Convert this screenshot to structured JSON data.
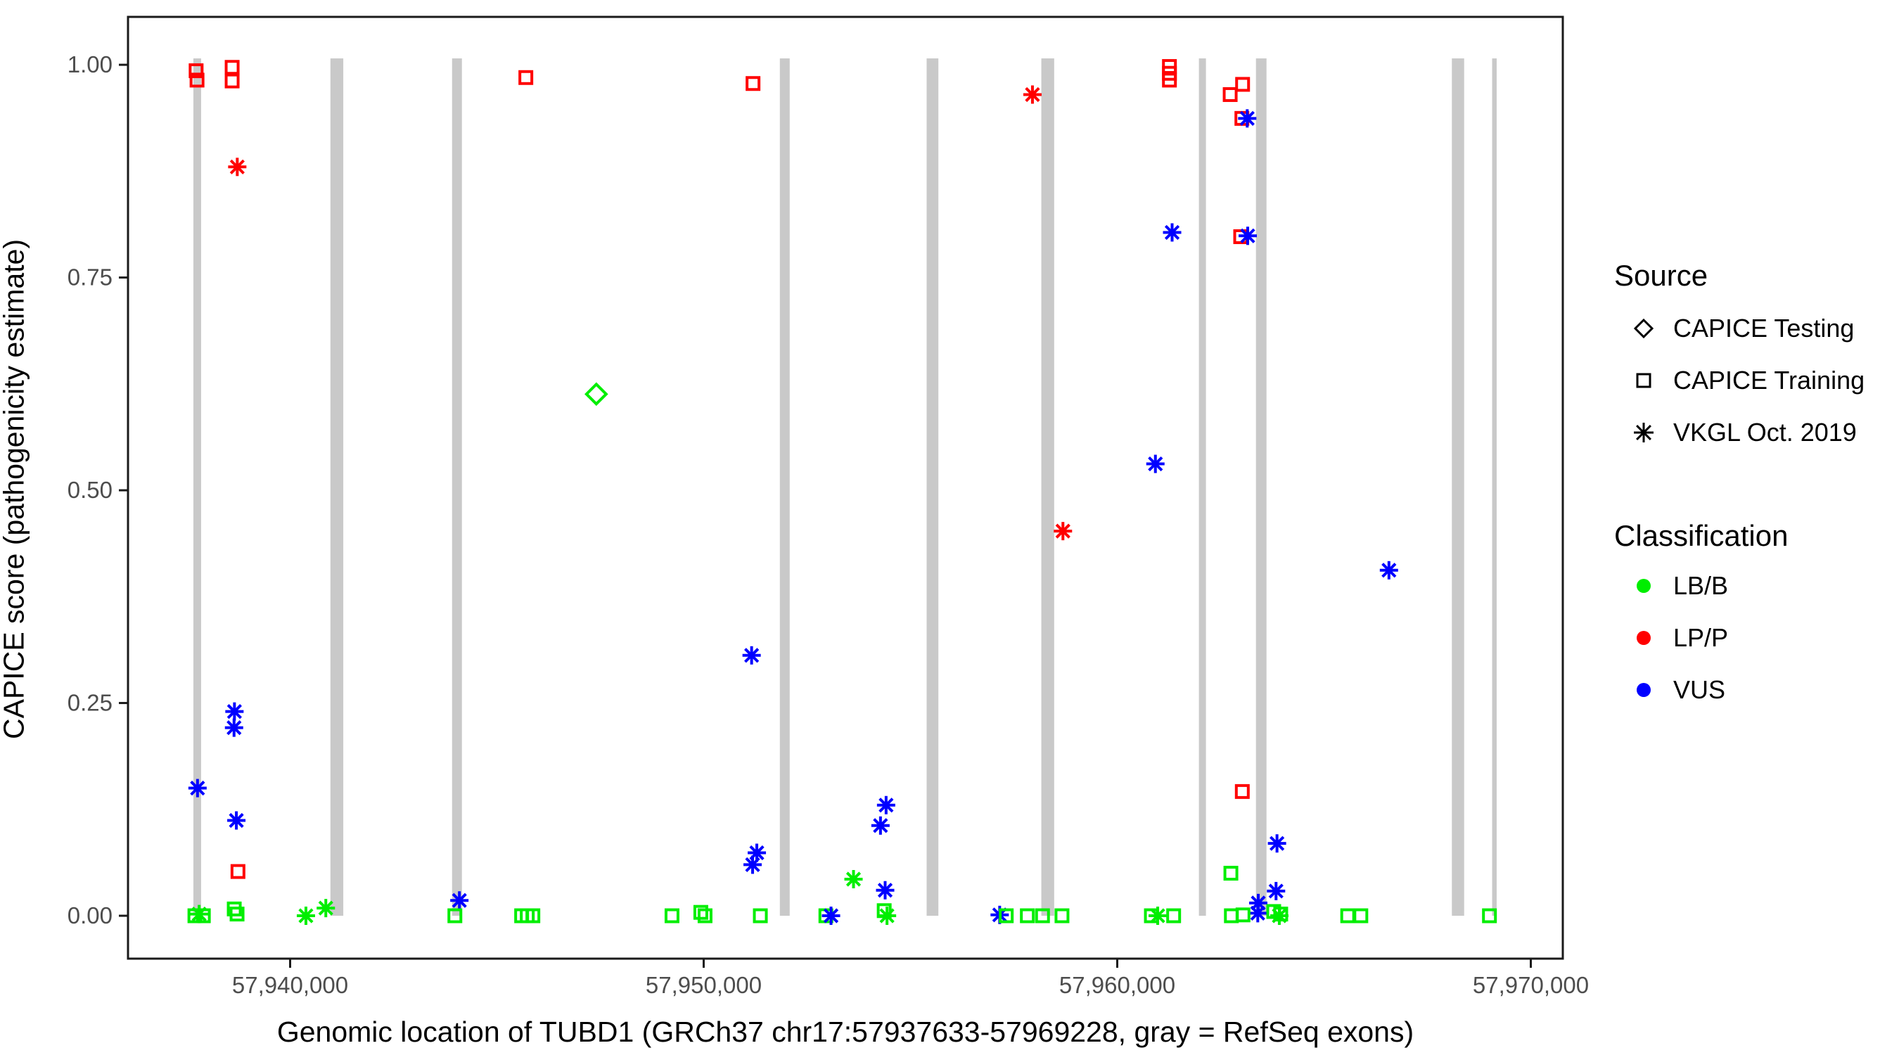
{
  "chart_data": {
    "type": "scatter",
    "title": "",
    "xlabel": "Genomic location of TUBD1 (GRCh37 chr17:57937633-57969228, gray = RefSeq exons)",
    "ylabel": "CAPICE score (pathogenicity estimate)",
    "x_domain": [
      57936080,
      57970774
    ],
    "y_domain": [
      -0.0504,
      1.0563
    ],
    "grid": "off",
    "legend_position": "right",
    "x_ticks": [
      {
        "value": 57940000,
        "label": "57,940,000"
      },
      {
        "value": 57950000,
        "label": "57,950,000"
      },
      {
        "value": 57960000,
        "label": "57,960,000"
      },
      {
        "value": 57970000,
        "label": "57,970,000"
      }
    ],
    "y_ticks": [
      {
        "value": 0.0,
        "label": "0.00"
      },
      {
        "value": 0.25,
        "label": "0.25"
      },
      {
        "value": 0.5,
        "label": "0.50"
      },
      {
        "value": 0.75,
        "label": "0.75"
      },
      {
        "value": 1.0,
        "label": "1.00"
      }
    ],
    "exon_bars": [
      {
        "center_bp": 57937754,
        "width_bp": 187
      },
      {
        "center_bp": 57941130,
        "width_bp": 311
      },
      {
        "center_bp": 57944035,
        "width_bp": 238
      },
      {
        "center_bp": 57951961,
        "width_bp": 238
      },
      {
        "center_bp": 57955533,
        "width_bp": 284
      },
      {
        "center_bp": 57958320,
        "width_bp": 311
      },
      {
        "center_bp": 57962060,
        "width_bp": 170
      },
      {
        "center_bp": 57963482,
        "width_bp": 255
      },
      {
        "center_bp": 57968240,
        "width_bp": 297
      },
      {
        "center_bp": 57969120,
        "width_bp": 110
      }
    ],
    "exon_bar_y_span": [
      0.0,
      1.0075
    ],
    "exon_color": "#C9C9C9",
    "shape_by_source": {
      "CAPICE Testing": "diamond",
      "CAPICE Training": "square",
      "VKGL Oct. 2019": "asterisk"
    },
    "color_by_class": {
      "LB/B": "#00EE00",
      "LP/P": "#FF0000",
      "VUS": "#0000FF"
    },
    "points": [
      {
        "bp": 57937727,
        "score": 0.993,
        "source": "CAPICE Training",
        "cls": "LP/P"
      },
      {
        "bp": 57937749,
        "score": 0.982,
        "source": "CAPICE Training",
        "cls": "LP/P"
      },
      {
        "bp": 57937761,
        "score": 0.15,
        "source": "VKGL Oct. 2019",
        "cls": "VUS"
      },
      {
        "bp": 57937698,
        "score": 0.0,
        "source": "CAPICE Training",
        "cls": "LB/B"
      },
      {
        "bp": 57937800,
        "score": 0.002,
        "source": "VKGL Oct. 2019",
        "cls": "LB/B"
      },
      {
        "bp": 57937902,
        "score": 0.0,
        "source": "CAPICE Training",
        "cls": "LB/B"
      },
      {
        "bp": 57938598,
        "score": 0.997,
        "source": "CAPICE Training",
        "cls": "LP/P"
      },
      {
        "bp": 57938598,
        "score": 0.981,
        "source": "CAPICE Training",
        "cls": "LP/P"
      },
      {
        "bp": 57938722,
        "score": 0.88,
        "source": "VKGL Oct. 2019",
        "cls": "LP/P"
      },
      {
        "bp": 57938654,
        "score": 0.24,
        "source": "VKGL Oct. 2019",
        "cls": "VUS"
      },
      {
        "bp": 57938644,
        "score": 0.221,
        "source": "VKGL Oct. 2019",
        "cls": "VUS"
      },
      {
        "bp": 57938700,
        "score": 0.112,
        "source": "VKGL Oct. 2019",
        "cls": "VUS"
      },
      {
        "bp": 57938739,
        "score": 0.052,
        "source": "CAPICE Training",
        "cls": "LP/P"
      },
      {
        "bp": 57938649,
        "score": 0.008,
        "source": "CAPICE Training",
        "cls": "LB/B"
      },
      {
        "bp": 57938717,
        "score": 0.002,
        "source": "CAPICE Training",
        "cls": "LB/B"
      },
      {
        "bp": 57940382,
        "score": 0.0,
        "source": "VKGL Oct. 2019",
        "cls": "LB/B"
      },
      {
        "bp": 57940863,
        "score": 0.009,
        "source": "VKGL Oct. 2019",
        "cls": "LB/B"
      },
      {
        "bp": 57944093,
        "score": 0.018,
        "source": "VKGL Oct. 2019",
        "cls": "VUS"
      },
      {
        "bp": 57943984,
        "score": 0.0,
        "source": "CAPICE Training",
        "cls": "LB/B"
      },
      {
        "bp": 57945598,
        "score": 0.0,
        "source": "CAPICE Training",
        "cls": "LB/B"
      },
      {
        "bp": 57945734,
        "score": 0.0,
        "source": "CAPICE Training",
        "cls": "LB/B"
      },
      {
        "bp": 57945870,
        "score": 0.0,
        "source": "CAPICE Training",
        "cls": "LB/B"
      },
      {
        "bp": 57945700,
        "score": 0.985,
        "source": "CAPICE Training",
        "cls": "LP/P"
      },
      {
        "bp": 57947404,
        "score": 0.613,
        "source": "CAPICE Testing",
        "cls": "LB/B"
      },
      {
        "bp": 57949234,
        "score": 0.0,
        "source": "CAPICE Training",
        "cls": "LB/B"
      },
      {
        "bp": 57949931,
        "score": 0.004,
        "source": "CAPICE Training",
        "cls": "LB/B"
      },
      {
        "bp": 57950033,
        "score": 0.0,
        "source": "CAPICE Training",
        "cls": "LB/B"
      },
      {
        "bp": 57951193,
        "score": 0.978,
        "source": "CAPICE Training",
        "cls": "LP/P"
      },
      {
        "bp": 57951159,
        "score": 0.306,
        "source": "VKGL Oct. 2019",
        "cls": "VUS"
      },
      {
        "bp": 57951285,
        "score": 0.074,
        "source": "VKGL Oct. 2019",
        "cls": "VUS"
      },
      {
        "bp": 57951183,
        "score": 0.06,
        "source": "VKGL Oct. 2019",
        "cls": "VUS"
      },
      {
        "bp": 57951370,
        "score": 0.0,
        "source": "CAPICE Training",
        "cls": "LB/B"
      },
      {
        "bp": 57952955,
        "score": 0.0,
        "source": "CAPICE Training",
        "cls": "LB/B"
      },
      {
        "bp": 57953079,
        "score": 0.0,
        "source": "VKGL Oct. 2019",
        "cls": "VUS"
      },
      {
        "bp": 57953623,
        "score": 0.043,
        "source": "VKGL Oct. 2019",
        "cls": "LB/B"
      },
      {
        "bp": 57954411,
        "score": 0.13,
        "source": "VKGL Oct. 2019",
        "cls": "VUS"
      },
      {
        "bp": 57954275,
        "score": 0.106,
        "source": "VKGL Oct. 2019",
        "cls": "VUS"
      },
      {
        "bp": 57954388,
        "score": 0.03,
        "source": "VKGL Oct. 2019",
        "cls": "VUS"
      },
      {
        "bp": 57954365,
        "score": 0.006,
        "source": "CAPICE Training",
        "cls": "LB/B"
      },
      {
        "bp": 57954433,
        "score": 0.0,
        "source": "VKGL Oct. 2019",
        "cls": "LB/B"
      },
      {
        "bp": 57957157,
        "score": 0.001,
        "source": "VKGL Oct. 2019",
        "cls": "VUS"
      },
      {
        "bp": 57957316,
        "score": 0.0,
        "source": "CAPICE Training",
        "cls": "LB/B"
      },
      {
        "bp": 57957826,
        "score": 0.0,
        "source": "CAPICE Training",
        "cls": "LB/B"
      },
      {
        "bp": 57958193,
        "score": 0.0,
        "source": "CAPICE Training",
        "cls": "LB/B"
      },
      {
        "bp": 57958664,
        "score": 0.0,
        "source": "CAPICE Training",
        "cls": "LB/B"
      },
      {
        "bp": 57957950,
        "score": 0.965,
        "source": "VKGL Oct. 2019",
        "cls": "LP/P"
      },
      {
        "bp": 57958687,
        "score": 0.452,
        "source": "VKGL Oct. 2019",
        "cls": "LP/P"
      },
      {
        "bp": 57960826,
        "score": 0.0,
        "source": "CAPICE Training",
        "cls": "LB/B"
      },
      {
        "bp": 57960979,
        "score": 0.0,
        "source": "VKGL Oct. 2019",
        "cls": "LB/B"
      },
      {
        "bp": 57961364,
        "score": 0.0,
        "source": "CAPICE Training",
        "cls": "LB/B"
      },
      {
        "bp": 57961262,
        "score": 0.998,
        "source": "CAPICE Training",
        "cls": "LP/P"
      },
      {
        "bp": 57961262,
        "score": 0.99,
        "source": "CAPICE Training",
        "cls": "LP/P"
      },
      {
        "bp": 57961262,
        "score": 0.982,
        "source": "CAPICE Training",
        "cls": "LP/P"
      },
      {
        "bp": 57961327,
        "score": 0.803,
        "source": "VKGL Oct. 2019",
        "cls": "VUS"
      },
      {
        "bp": 57960923,
        "score": 0.531,
        "source": "VKGL Oct. 2019",
        "cls": "VUS"
      },
      {
        "bp": 57963031,
        "score": 0.977,
        "source": "CAPICE Training",
        "cls": "LP/P"
      },
      {
        "bp": 57962731,
        "score": 0.965,
        "source": "CAPICE Training",
        "cls": "LP/P"
      },
      {
        "bp": 57963014,
        "score": 0.937,
        "source": "CAPICE Training",
        "cls": "LP/P"
      },
      {
        "bp": 57963143,
        "score": 0.937,
        "source": "VKGL Oct. 2019",
        "cls": "VUS"
      },
      {
        "bp": 57962985,
        "score": 0.798,
        "source": "CAPICE Training",
        "cls": "LP/P"
      },
      {
        "bp": 57963155,
        "score": 0.799,
        "source": "VKGL Oct. 2019",
        "cls": "VUS"
      },
      {
        "bp": 57963024,
        "score": 0.146,
        "source": "CAPICE Training",
        "cls": "LP/P"
      },
      {
        "bp": 57962748,
        "score": 0.05,
        "source": "CAPICE Training",
        "cls": "LB/B"
      },
      {
        "bp": 57963863,
        "score": 0.085,
        "source": "VKGL Oct. 2019",
        "cls": "VUS"
      },
      {
        "bp": 57963840,
        "score": 0.029,
        "source": "VKGL Oct. 2019",
        "cls": "VUS"
      },
      {
        "bp": 57963410,
        "score": 0.015,
        "source": "VKGL Oct. 2019",
        "cls": "VUS"
      },
      {
        "bp": 57963398,
        "score": 0.003,
        "source": "VKGL Oct. 2019",
        "cls": "VUS"
      },
      {
        "bp": 57962760,
        "score": 0.0,
        "source": "CAPICE Training",
        "cls": "LB/B"
      },
      {
        "bp": 57963041,
        "score": 0.001,
        "source": "CAPICE Training",
        "cls": "LB/B"
      },
      {
        "bp": 57963784,
        "score": 0.005,
        "source": "CAPICE Training",
        "cls": "LB/B"
      },
      {
        "bp": 57963919,
        "score": 0.0,
        "source": "VKGL Oct. 2019",
        "cls": "LB/B"
      },
      {
        "bp": 57963953,
        "score": 0.002,
        "source": "CAPICE Training",
        "cls": "LB/B"
      },
      {
        "bp": 57965573,
        "score": 0.0,
        "source": "CAPICE Training",
        "cls": "LB/B"
      },
      {
        "bp": 57965890,
        "score": 0.0,
        "source": "CAPICE Training",
        "cls": "LB/B"
      },
      {
        "bp": 57966570,
        "score": 0.406,
        "source": "VKGL Oct. 2019",
        "cls": "VUS"
      },
      {
        "bp": 57969000,
        "score": 0.0,
        "source": "CAPICE Training",
        "cls": "LB/B"
      }
    ]
  },
  "legend": {
    "source": {
      "title": "Source",
      "items": [
        {
          "label": "CAPICE Testing",
          "shape": "diamond"
        },
        {
          "label": "CAPICE Training",
          "shape": "square"
        },
        {
          "label": "VKGL Oct. 2019",
          "shape": "asterisk"
        }
      ]
    },
    "classification": {
      "title": "Classification",
      "items": [
        {
          "label": "LB/B",
          "color": "#00EE00"
        },
        {
          "label": "LP/P",
          "color": "#FF0000"
        },
        {
          "label": "VUS",
          "color": "#0000FF"
        }
      ]
    }
  },
  "style": {
    "tick_text_color": "#4d4d4d",
    "axis_line_color": "#1a1a1a",
    "panel_border_color": "#1a1a1a"
  }
}
